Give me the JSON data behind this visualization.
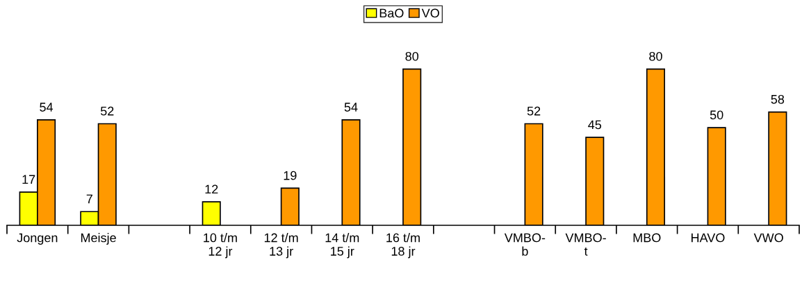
{
  "chart_data": {
    "type": "bar",
    "categories": [
      "Jongen",
      "Meisje",
      null,
      "10 t/m\n12 jr",
      "12 t/m\n13 jr",
      "14 t/m\n15 jr",
      "16 t/m\n18 jr",
      null,
      "VMBO-\nb",
      "VMBO-\nt",
      "MBO",
      "HAVO",
      "VWO"
    ],
    "series": [
      {
        "name": "BaO",
        "color": "#ffff00",
        "values": [
          17,
          7,
          null,
          12,
          null,
          null,
          null,
          null,
          null,
          null,
          null,
          null,
          null
        ]
      },
      {
        "name": "VO",
        "color": "#ff9900",
        "values": [
          54,
          52,
          null,
          null,
          19,
          54,
          80,
          null,
          52,
          45,
          80,
          50,
          58
        ]
      }
    ],
    "data_labels": true,
    "legend": "top",
    "grid": false
  }
}
